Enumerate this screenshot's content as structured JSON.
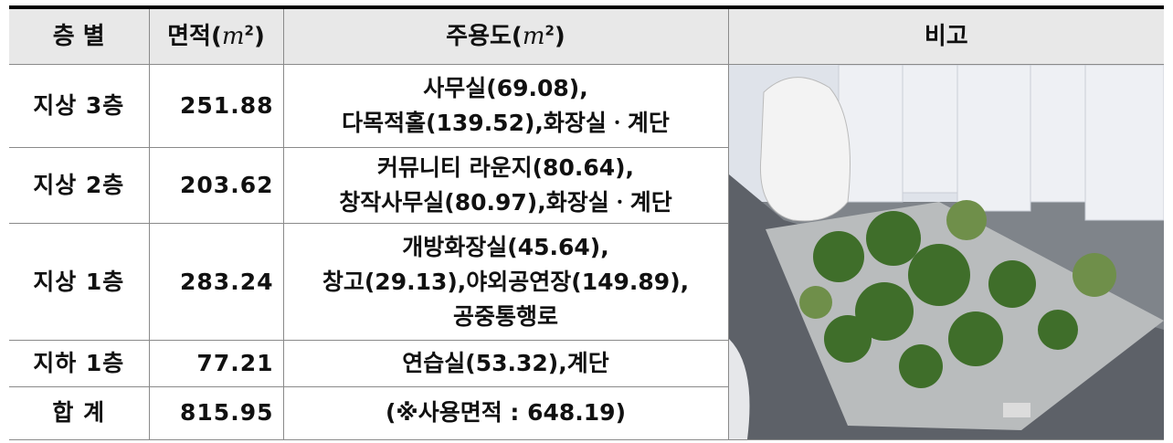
{
  "table": {
    "header": [
      "층 별",
      {
        "label": "면적(",
        "unit": "m",
        "power": "2",
        "end": ")"
      },
      {
        "label": "주용도(",
        "unit": "m",
        "power": "2",
        "end": ")"
      },
      "비고"
    ],
    "rows": [
      {
        "floor": "지상 3층",
        "area": 251.88,
        "use": [
          "사무실(69.08),",
          "다목적홀(139.52),화장실ㆍ계단"
        ]
      },
      {
        "floor": "지상 2층",
        "area": 203.62,
        "use": [
          "커뮤니티 라운지(80.64),",
          "창작사무실(80.97),화장실ㆍ계단"
        ]
      },
      {
        "floor": "지상 1층",
        "area": 283.24,
        "use": [
          "개방화장실(45.64),",
          "창고(29.13),야외공연장(149.89),",
          "공중통행로"
        ]
      },
      {
        "floor": "지하 1층",
        "area": 77.21,
        "use": [
          "연습실(53.32),계단"
        ]
      },
      {
        "floor": "합 계",
        "area": 815.95,
        "use": [
          "(※사용면적 : 648.19)"
        ]
      }
    ]
  }
}
